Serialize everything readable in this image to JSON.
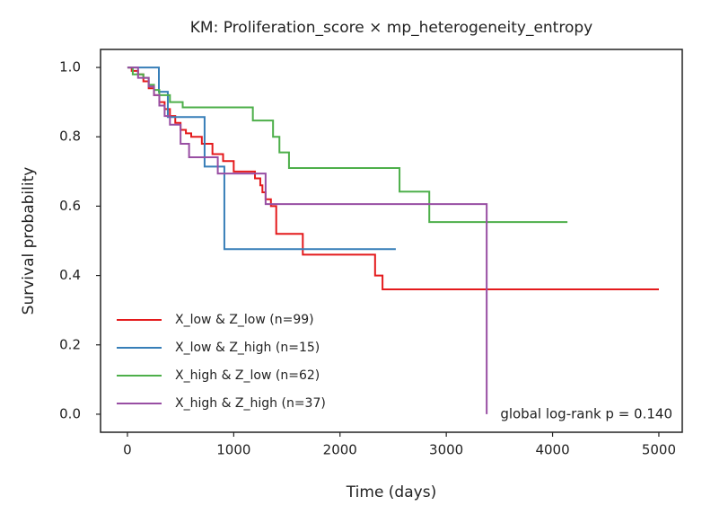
{
  "chart_data": {
    "type": "line",
    "step": "post",
    "title": "KM: Proliferation_score × mp_heterogeneity_entropy",
    "x_label": "Time (days)",
    "y_label": "Survival probability",
    "annotation": "global log-rank p = 0.140",
    "legend_position": "lower left",
    "xlim": [
      -253,
      5220
    ],
    "ylim": [
      -0.052,
      1.052
    ],
    "xticks": [
      0,
      1000,
      2000,
      3000,
      4000,
      5000
    ],
    "yticks": [
      {
        "value": 0,
        "label": "0.0"
      },
      0.2,
      0.4,
      0.6,
      0.8,
      {
        "value": 1,
        "label": "1.0"
      }
    ],
    "series": [
      {
        "name": "X_low & Z_low (n=99)",
        "color": "#e41a1c",
        "x": [
          0,
          40,
          100,
          150,
          200,
          250,
          300,
          350,
          400,
          450,
          500,
          550,
          600,
          700,
          800,
          900,
          1000,
          1100,
          1200,
          1250,
          1270,
          1300,
          1350,
          1400,
          1650,
          2330,
          2400,
          5000
        ],
        "values": [
          1.0,
          0.99,
          0.98,
          0.96,
          0.94,
          0.92,
          0.9,
          0.88,
          0.86,
          0.84,
          0.82,
          0.81,
          0.8,
          0.78,
          0.75,
          0.73,
          0.7,
          0.7,
          0.68,
          0.66,
          0.64,
          0.62,
          0.6,
          0.52,
          0.46,
          0.4,
          0.36,
          0.36
        ]
      },
      {
        "name": "X_low & Z_high (n=15)",
        "color": "#377eb8",
        "x": [
          0,
          296,
          380,
          726,
          912,
          2525
        ],
        "values": [
          1.0,
          0.93,
          0.857,
          0.714,
          0.476,
          0.476
        ]
      },
      {
        "name": "X_high & Z_low (n=62)",
        "color": "#4daf4a",
        "x": [
          0,
          50,
          150,
          200,
          250,
          300,
          400,
          520,
          1180,
          1370,
          1430,
          1520,
          2560,
          2840,
          4140
        ],
        "values": [
          1.0,
          0.98,
          0.97,
          0.95,
          0.935,
          0.92,
          0.9,
          0.885,
          0.847,
          0.8,
          0.755,
          0.71,
          0.642,
          0.554,
          0.554
        ]
      },
      {
        "name": "X_high & Z_high (n=37)",
        "color": "#984ea3",
        "x": [
          0,
          100,
          200,
          250,
          300,
          350,
          400,
          500,
          580,
          850,
          1300,
          3380
        ],
        "values": [
          1.0,
          0.97,
          0.945,
          0.92,
          0.89,
          0.86,
          0.835,
          0.78,
          0.741,
          0.694,
          0.606,
          0.0
        ]
      }
    ]
  }
}
